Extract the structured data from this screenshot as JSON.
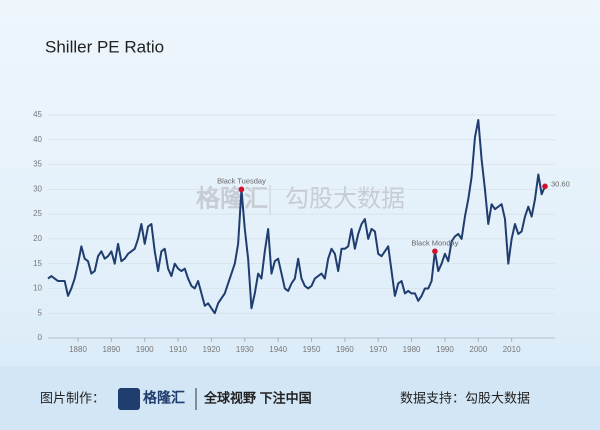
{
  "chart_data": {
    "type": "line",
    "title": "Shiller PE Ratio",
    "x": [
      1871,
      1872,
      1873,
      1874,
      1875,
      1876,
      1877,
      1878,
      1879,
      1880,
      1881,
      1882,
      1883,
      1884,
      1885,
      1886,
      1887,
      1888,
      1889,
      1890,
      1891,
      1892,
      1893,
      1894,
      1895,
      1896,
      1897,
      1898,
      1899,
      1900,
      1901,
      1902,
      1903,
      1904,
      1905,
      1906,
      1907,
      1908,
      1909,
      1910,
      1911,
      1912,
      1913,
      1914,
      1915,
      1916,
      1917,
      1918,
      1919,
      1920,
      1921,
      1922,
      1923,
      1924,
      1925,
      1926,
      1927,
      1928,
      1929,
      1930,
      1931,
      1932,
      1933,
      1934,
      1935,
      1936,
      1937,
      1938,
      1939,
      1940,
      1941,
      1942,
      1943,
      1944,
      1945,
      1946,
      1947,
      1948,
      1949,
      1950,
      1951,
      1952,
      1953,
      1954,
      1955,
      1956,
      1957,
      1958,
      1959,
      1960,
      1961,
      1962,
      1963,
      1964,
      1965,
      1966,
      1967,
      1968,
      1969,
      1970,
      1971,
      1972,
      1973,
      1974,
      1975,
      1976,
      1977,
      1978,
      1979,
      1980,
      1981,
      1982,
      1983,
      1984,
      1985,
      1986,
      1987,
      1988,
      1989,
      1990,
      1991,
      1992,
      1993,
      1994,
      1995,
      1996,
      1997,
      1998,
      1999,
      2000,
      2001,
      2002,
      2003,
      2004,
      2005,
      2006,
      2007,
      2008,
      2009,
      2010,
      2011,
      2012,
      2013,
      2014,
      2015,
      2016,
      2017,
      2018,
      2019,
      2020
    ],
    "values": [
      12,
      12.5,
      12,
      11.5,
      11.5,
      11.5,
      8.5,
      10,
      12,
      15,
      18.5,
      16,
      15.5,
      13,
      13.5,
      16.5,
      17.5,
      16,
      16.5,
      17.5,
      15,
      19,
      15.5,
      16,
      17,
      17.5,
      18,
      20,
      23,
      19,
      22.5,
      23,
      17.5,
      13.5,
      17.5,
      18,
      14,
      12.5,
      15,
      14,
      13.5,
      14,
      12,
      10.5,
      10,
      11.5,
      9,
      6.5,
      7,
      6,
      5,
      7,
      8,
      9,
      11,
      13,
      15,
      19,
      30,
      22,
      16,
      6,
      9,
      13,
      12,
      17.5,
      22,
      13,
      15.5,
      16,
      13,
      10,
      9.5,
      11,
      12,
      16,
      12,
      10.5,
      10,
      10.5,
      12,
      12.5,
      13,
      12,
      16,
      18,
      17,
      13.5,
      18,
      18,
      18.5,
      22,
      18,
      21,
      23,
      24,
      20,
      22,
      21.5,
      17,
      16.5,
      17.5,
      18.5,
      13.5,
      8.5,
      11,
      11.5,
      9,
      9.5,
      9,
      9,
      7.5,
      8.5,
      10,
      10,
      11.5,
      17.5,
      13.5,
      15,
      17,
      15.5,
      19.5,
      20.5,
      21,
      20,
      24.5,
      28,
      32.5,
      40.5,
      44,
      36,
      30,
      23,
      27,
      26,
      26.5,
      27,
      24,
      15,
      20,
      23,
      21,
      21.5,
      24.5,
      26.5,
      24.5,
      28,
      33,
      29,
      30.6
    ],
    "color": "#1f3d6e",
    "xlim": [
      1871,
      2023
    ],
    "xticks": [
      1880,
      1890,
      1900,
      1910,
      1920,
      1930,
      1940,
      1950,
      1960,
      1970,
      1980,
      1990,
      2000,
      2010
    ],
    "ylim": [
      0,
      45
    ],
    "yticks": [
      0,
      5,
      10,
      15,
      20,
      25,
      30,
      35,
      40,
      45
    ],
    "grid": true,
    "annotations": [
      {
        "label": "Black Tuesday",
        "x": 1929,
        "y": 30
      },
      {
        "label": "Black Monday",
        "x": 1987,
        "y": 17.5
      },
      {
        "label": "30.60",
        "x": 2020,
        "y": 30.6
      }
    ],
    "marker_color": "#d0112b"
  },
  "watermark": {
    "logo": "格隆汇",
    "source": "勾股大数据"
  },
  "footer": {
    "made_by_label": "图片制作：",
    "logo": "格隆汇",
    "slogan": "全球视野 下注中国",
    "data_source": "数据支持：勾股大数据"
  }
}
